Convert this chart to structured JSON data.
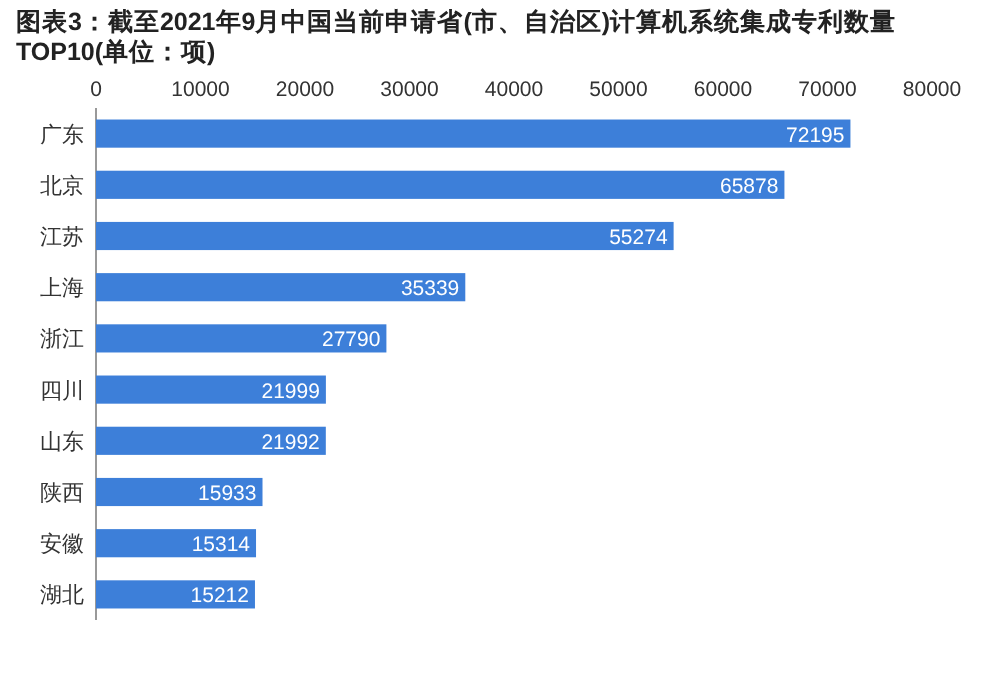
{
  "chart_data": {
    "type": "bar",
    "orientation": "horizontal",
    "title": "图表3：截至2021年9月中国当前申请省(市、自治区)计算机系统集成专利数量TOP10(单位：项)",
    "categories": [
      "广东",
      "北京",
      "江苏",
      "上海",
      "浙江",
      "四川",
      "山东",
      "陕西",
      "安徽",
      "湖北"
    ],
    "values": [
      72195,
      65878,
      55274,
      35339,
      27790,
      21999,
      21992,
      15933,
      15314,
      15212
    ],
    "color": "#3d7fd9",
    "xlim": [
      0,
      80000
    ],
    "xticks": [
      0,
      10000,
      20000,
      30000,
      40000,
      50000,
      60000,
      70000,
      80000
    ],
    "data_labels": true
  }
}
